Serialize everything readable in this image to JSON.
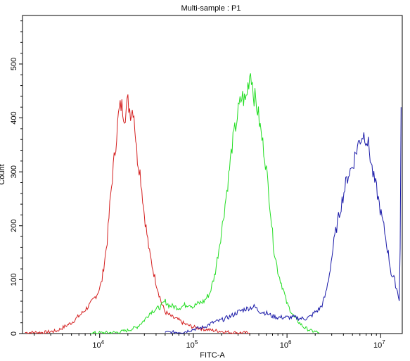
{
  "chart_data": {
    "type": "line",
    "title": "Multi-sample : P1",
    "xlabel": "FITC-A",
    "ylabel": "Count",
    "x_scale": "log",
    "xlim": [
      1500,
      17000000
    ],
    "ylim": [
      0,
      590
    ],
    "grid": false,
    "legend": "none",
    "x_ticks": [
      {
        "value": 10000,
        "base": "10",
        "exp": "4"
      },
      {
        "value": 100000,
        "base": "10",
        "exp": "5"
      },
      {
        "value": 1000000,
        "base": "10",
        "exp": "6"
      },
      {
        "value": 10000000,
        "base": "10",
        "exp": "7"
      }
    ],
    "y_ticks": [
      0,
      100,
      200,
      300,
      400,
      500
    ],
    "series": [
      {
        "color": "#d42020",
        "points": [
          [
            1600,
            2
          ],
          [
            2500,
            2
          ],
          [
            3500,
            5
          ],
          [
            5000,
            20
          ],
          [
            6500,
            38
          ],
          [
            8000,
            55
          ],
          [
            9500,
            75
          ],
          [
            10500,
            95
          ],
          [
            12000,
            170
          ],
          [
            13000,
            250
          ],
          [
            14000,
            310
          ],
          [
            15000,
            360
          ],
          [
            16000,
            410
          ],
          [
            17000,
            425
          ],
          [
            18500,
            405
          ],
          [
            20000,
            430
          ],
          [
            21500,
            410
          ],
          [
            23000,
            420
          ],
          [
            25000,
            330
          ],
          [
            27000,
            300
          ],
          [
            30000,
            220
          ],
          [
            34000,
            150
          ],
          [
            38000,
            110
          ],
          [
            42000,
            80
          ],
          [
            46000,
            55
          ],
          [
            50000,
            40
          ],
          [
            60000,
            30
          ],
          [
            70000,
            25
          ],
          [
            80000,
            18
          ],
          [
            100000,
            12
          ],
          [
            130000,
            8
          ],
          [
            180000,
            5
          ],
          [
            250000,
            2
          ],
          [
            400000,
            1
          ]
        ]
      },
      {
        "color": "#22dd22",
        "points": [
          [
            8000,
            1
          ],
          [
            15000,
            2
          ],
          [
            20000,
            6
          ],
          [
            25000,
            12
          ],
          [
            30000,
            25
          ],
          [
            35000,
            40
          ],
          [
            40000,
            45
          ],
          [
            45000,
            50
          ],
          [
            50000,
            60
          ],
          [
            55000,
            52
          ],
          [
            62000,
            50
          ],
          [
            70000,
            48
          ],
          [
            80000,
            52
          ],
          [
            90000,
            55
          ],
          [
            100000,
            50
          ],
          [
            110000,
            55
          ],
          [
            130000,
            60
          ],
          [
            150000,
            75
          ],
          [
            170000,
            110
          ],
          [
            200000,
            190
          ],
          [
            230000,
            270
          ],
          [
            260000,
            350
          ],
          [
            300000,
            410
          ],
          [
            330000,
            440
          ],
          [
            360000,
            430
          ],
          [
            390000,
            470
          ],
          [
            410000,
            490
          ],
          [
            440000,
            445
          ],
          [
            480000,
            420
          ],
          [
            530000,
            370
          ],
          [
            580000,
            330
          ],
          [
            650000,
            250
          ],
          [
            720000,
            160
          ],
          [
            800000,
            115
          ],
          [
            900000,
            85
          ],
          [
            1000000,
            55
          ],
          [
            1200000,
            30
          ],
          [
            1500000,
            12
          ],
          [
            1800000,
            5
          ],
          [
            2200000,
            2
          ]
        ]
      },
      {
        "color": "#1a1aa8",
        "points": [
          [
            50000,
            2
          ],
          [
            80000,
            3
          ],
          [
            100000,
            8
          ],
          [
            130000,
            12
          ],
          [
            160000,
            20
          ],
          [
            200000,
            25
          ],
          [
            250000,
            32
          ],
          [
            300000,
            40
          ],
          [
            350000,
            45
          ],
          [
            400000,
            48
          ],
          [
            450000,
            50
          ],
          [
            500000,
            42
          ],
          [
            600000,
            38
          ],
          [
            700000,
            32
          ],
          [
            800000,
            30
          ],
          [
            900000,
            30
          ],
          [
            1000000,
            30
          ],
          [
            1200000,
            30
          ],
          [
            1400000,
            28
          ],
          [
            1600000,
            28
          ],
          [
            1800000,
            32
          ],
          [
            2000000,
            40
          ],
          [
            2200000,
            45
          ],
          [
            2400000,
            55
          ],
          [
            2600000,
            75
          ],
          [
            2800000,
            105
          ],
          [
            3000000,
            140
          ],
          [
            3200000,
            175
          ],
          [
            3500000,
            210
          ],
          [
            3800000,
            240
          ],
          [
            4200000,
            275
          ],
          [
            4500000,
            295
          ],
          [
            5000000,
            310
          ],
          [
            5500000,
            340
          ],
          [
            6000000,
            360
          ],
          [
            6500000,
            370
          ],
          [
            7000000,
            365
          ],
          [
            7500000,
            345
          ],
          [
            8000000,
            310
          ],
          [
            8500000,
            285
          ],
          [
            9000000,
            270
          ],
          [
            10000000,
            225
          ],
          [
            11000000,
            190
          ],
          [
            12000000,
            150
          ],
          [
            13000000,
            110
          ],
          [
            14000000,
            100
          ],
          [
            15000000,
            80
          ],
          [
            16000000,
            60
          ],
          [
            16500000,
            420
          ]
        ]
      }
    ]
  }
}
